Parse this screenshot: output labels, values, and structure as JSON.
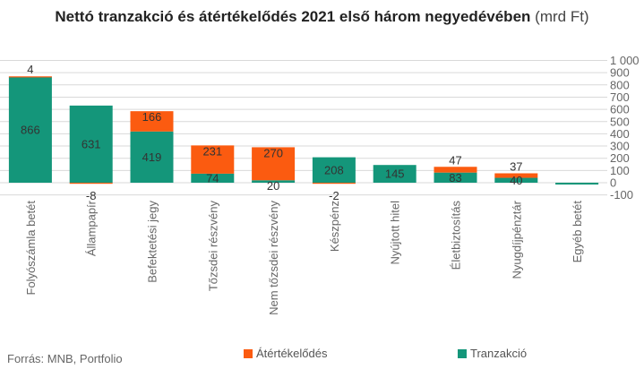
{
  "title": "Nettó tranzakció és átértékelődés 2021 első három negyedévében",
  "unit": "(mrd Ft)",
  "source": "Forrás: MNB, Portfolio",
  "colors": {
    "tranzakcio": "#14967a",
    "atertekelodes": "#fb5b10",
    "grid": "#d9d9d9",
    "axis_text": "#666666",
    "label": "#333333"
  },
  "chart_data": {
    "type": "bar",
    "stacked": true,
    "categories": [
      "Folyószámla betét",
      "Állampapír",
      "Befektetési jegy",
      "Tőzsdei részvény",
      "Nem tőzsdei részvény",
      "Készpénz",
      "Nyújtott hitel",
      "Életbiztosítás",
      "Nyugdíjpénztár",
      "Egyéb betét"
    ],
    "series": [
      {
        "name": "Tranzakció",
        "values": [
          866,
          631,
          419,
          74,
          20,
          208,
          145,
          83,
          40,
          -15
        ]
      },
      {
        "name": "Átértékelődés",
        "values": [
          4,
          -8,
          166,
          231,
          270,
          -2,
          0,
          47,
          37,
          0
        ]
      }
    ],
    "tranzakcio_labels": [
      "866",
      "631",
      "419",
      "74",
      "20",
      "208",
      "145",
      "83",
      "40",
      ""
    ],
    "atertekelodes_labels": [
      "4",
      "-8",
      "166",
      "231",
      "270",
      "-2",
      "",
      "47",
      "37",
      ""
    ],
    "ylim": [
      -100,
      1000
    ],
    "yticks": [
      -100,
      0,
      100,
      200,
      300,
      400,
      500,
      600,
      700,
      800,
      900,
      1000
    ],
    "ytick_labels": [
      "-100",
      "0",
      "100",
      "200",
      "300",
      "400",
      "500",
      "600",
      "700",
      "800",
      "900",
      "1 000"
    ],
    "y_axis_position": "right",
    "grid": true,
    "legend_position": "bottom"
  }
}
